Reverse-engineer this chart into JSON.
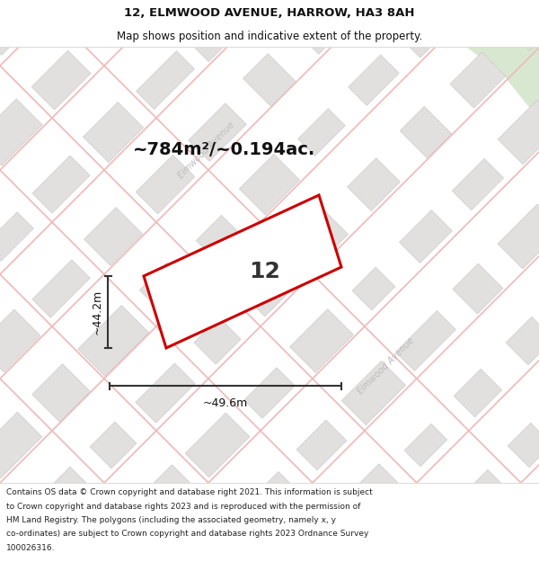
{
  "title": "12, ELMWOOD AVENUE, HARROW, HA3 8AH",
  "subtitle": "Map shows position and indicative extent of the property.",
  "area_text": "~784m²/~0.194ac.",
  "number_label": "12",
  "width_label": "~49.6m",
  "height_label": "~44.2m",
  "road_label_top": "Elmwood Avenue",
  "road_label_bottom": "Elmwood Avenue",
  "footer_lines": [
    "Contains OS data © Crown copyright and database right 2021. This information is subject",
    "to Crown copyright and database rights 2023 and is reproduced with the permission of",
    "HM Land Registry. The polygons (including the associated geometry, namely x, y",
    "co-ordinates) are subject to Crown copyright and database rights 2023 Ordnance Survey",
    "100026316."
  ],
  "map_bg": "#f7f6f4",
  "block_fill": "#e2e0de",
  "block_edge": "#c8c6c4",
  "road_line_color": "#f0b8b8",
  "road_center_color": "#e89898",
  "plot_fill": "#ffffff",
  "plot_edge": "#cc0000",
  "dim_color": "#333333",
  "text_color": "#111111",
  "road_text_color": "#bbbbbb",
  "green_area": "#d8e8d0",
  "header_bg": "#ffffff",
  "footer_bg": "#ffffff",
  "title_fontsize": 9.5,
  "subtitle_fontsize": 8.5,
  "area_fontsize": 14,
  "number_fontsize": 18,
  "dim_label_fontsize": 9,
  "road_label_fontsize": 7,
  "footer_fontsize": 6.5
}
